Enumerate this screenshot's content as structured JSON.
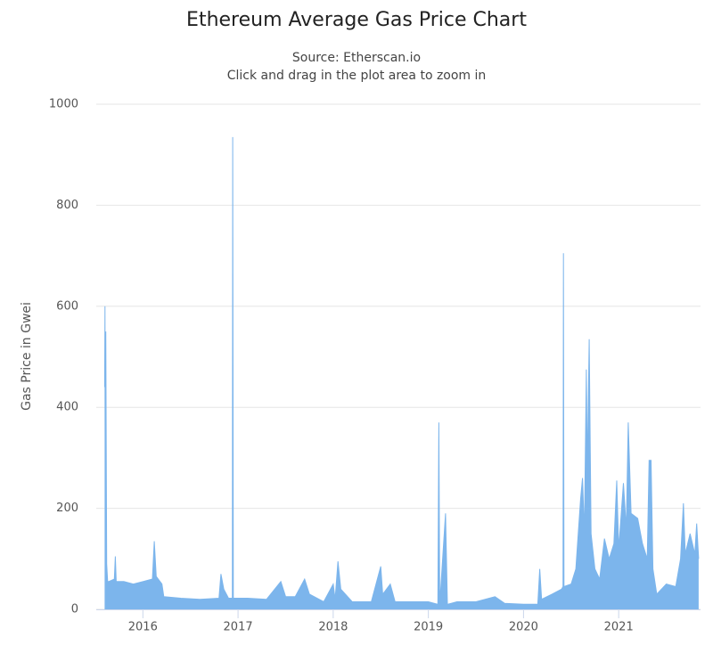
{
  "chart_data": {
    "type": "area",
    "title": "Ethereum Average Gas Price Chart",
    "subtitle": [
      "Source: Etherscan.io",
      "Click and drag in the plot area to zoom in"
    ],
    "y_label": "Gas Price in Gwei",
    "color": "#7cb5ec",
    "x": [
      2015.598,
      2015.602,
      2015.605,
      2015.61,
      2015.62,
      2015.63,
      2015.64,
      2015.7,
      2015.71,
      2015.72,
      2015.8,
      2015.9,
      2016.0,
      2016.1,
      2016.12,
      2016.14,
      2016.2,
      2016.22,
      2016.4,
      2016.6,
      2016.8,
      2016.82,
      2016.85,
      2016.9,
      2016.94,
      2016.944,
      2016.95,
      2017.1,
      2017.3,
      2017.45,
      2017.5,
      2017.6,
      2017.7,
      2017.75,
      2017.9,
      2018.0,
      2018.02,
      2018.05,
      2018.08,
      2018.2,
      2018.4,
      2018.5,
      2018.52,
      2018.6,
      2018.65,
      2018.8,
      2019.0,
      2019.1,
      2019.11,
      2019.12,
      2019.18,
      2019.2,
      2019.3,
      2019.5,
      2019.7,
      2019.8,
      2020.0,
      2020.15,
      2020.17,
      2020.19,
      2020.3,
      2020.4,
      2020.415,
      2020.42,
      2020.425,
      2020.5,
      2020.55,
      2020.6,
      2020.62,
      2020.64,
      2020.66,
      2020.67,
      2020.69,
      2020.71,
      2020.75,
      2020.8,
      2020.85,
      2020.9,
      2020.95,
      2020.98,
      2021.0,
      2021.05,
      2021.08,
      2021.1,
      2021.13,
      2021.2,
      2021.25,
      2021.3,
      2021.32,
      2021.34,
      2021.36,
      2021.4,
      2021.5,
      2021.6,
      2021.65,
      2021.68,
      2021.7,
      2021.75,
      2021.8,
      2021.82,
      2021.84
    ],
    "values": [
      440,
      600,
      190,
      550,
      90,
      55,
      55,
      60,
      105,
      55,
      55,
      50,
      55,
      60,
      135,
      65,
      50,
      25,
      22,
      20,
      22,
      70,
      40,
      22,
      22,
      935,
      22,
      22,
      20,
      55,
      25,
      25,
      60,
      30,
      15,
      50,
      20,
      95,
      40,
      15,
      15,
      85,
      30,
      50,
      15,
      15,
      15,
      10,
      370,
      10,
      190,
      10,
      15,
      15,
      25,
      12,
      10,
      10,
      80,
      20,
      30,
      40,
      45,
      705,
      45,
      50,
      80,
      220,
      260,
      150,
      475,
      270,
      535,
      150,
      80,
      60,
      140,
      100,
      130,
      255,
      120,
      250,
      160,
      370,
      190,
      180,
      130,
      100,
      295,
      295,
      80,
      30,
      50,
      45,
      100,
      210,
      110,
      150,
      110,
      170,
      100
    ],
    "xlim": [
      2015.51,
      2021.86
    ],
    "xticks": [
      2016,
      2017,
      2018,
      2019,
      2020,
      2021
    ],
    "ylim": [
      0,
      1000
    ],
    "yticks": [
      0,
      200,
      400,
      600,
      800,
      1000
    ],
    "grid": true
  }
}
